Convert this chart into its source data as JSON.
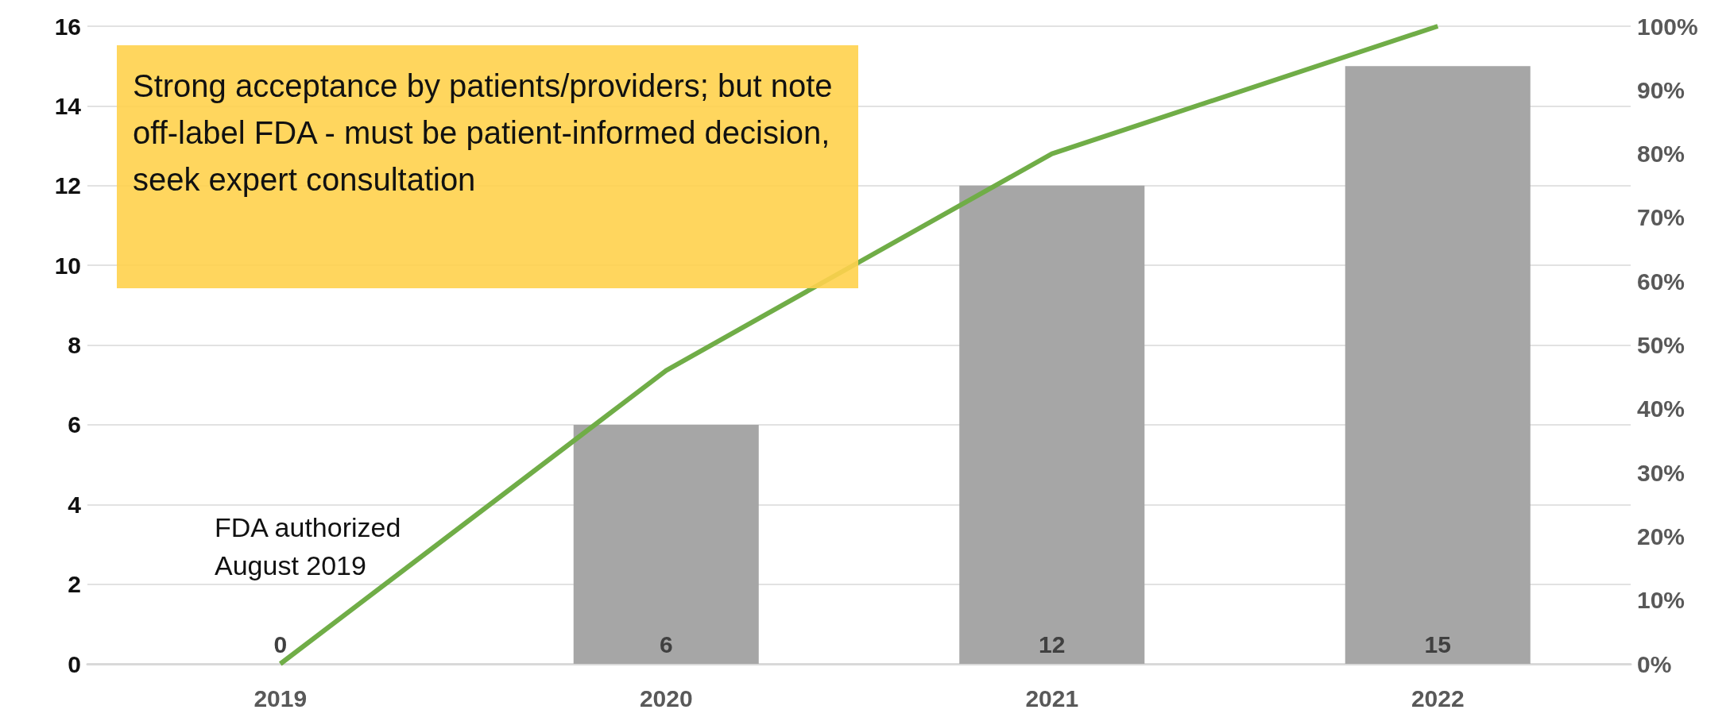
{
  "chart_data": {
    "type": "bar",
    "categories": [
      "2019",
      "2020",
      "2021",
      "2022"
    ],
    "series": [
      {
        "color": "#a6a6a6",
        "values": [
          0,
          6,
          12,
          15
        ],
        "value_labels": [
          "0",
          "6",
          "12",
          "15"
        ]
      },
      {
        "type": "line",
        "axis": "y2",
        "color": "#70ad47",
        "values": [
          0,
          46,
          80,
          100
        ],
        "marker": "none"
      }
    ],
    "ylim": [
      0,
      16
    ],
    "yticks": [
      0,
      2,
      4,
      6,
      8,
      10,
      12,
      14,
      16
    ],
    "y2lim": [
      0,
      100
    ],
    "y2ticks": [
      {
        "value": 0,
        "label": "0%"
      },
      {
        "value": 10,
        "label": "10%"
      },
      {
        "value": 20,
        "label": "20%"
      },
      {
        "value": 30,
        "label": "30%"
      },
      {
        "value": 40,
        "label": "40%"
      },
      {
        "value": 50,
        "label": "50%"
      },
      {
        "value": 60,
        "label": "60%"
      },
      {
        "value": 70,
        "label": "70%"
      },
      {
        "value": 80,
        "label": "80%"
      },
      {
        "value": 90,
        "label": "90%"
      },
      {
        "value": 100,
        "label": "100%"
      }
    ],
    "grid": "y",
    "annotations": [
      "Strong acceptance by patients/providers; but note off-label FDA - must be patient-informed decision, seek expert consultation",
      "FDA authorized August 2019"
    ]
  }
}
